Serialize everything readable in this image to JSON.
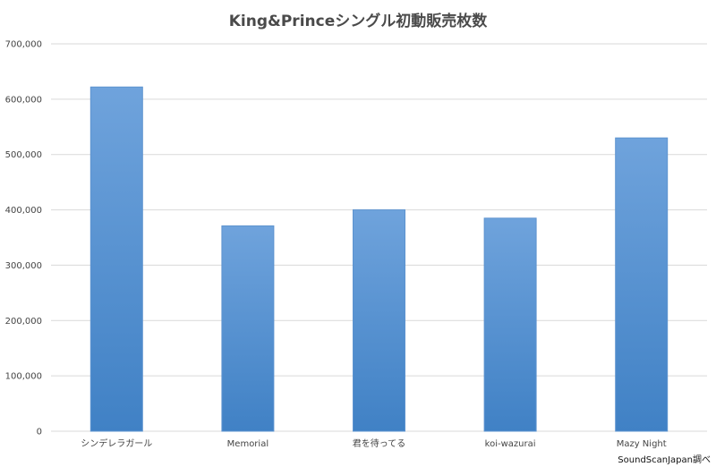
{
  "chart_data": {
    "type": "bar",
    "title": "King&Princeシングル初動販売枚数",
    "categories": [
      "シンデレラガール",
      "Memorial",
      "君を待ってる",
      "koi-wazurai",
      "Mazy Night"
    ],
    "values": [
      622000,
      371000,
      400000,
      385000,
      530000
    ],
    "ylim": [
      0,
      700000
    ],
    "yticks": [
      "0",
      "100,000",
      "200,000",
      "300,000",
      "400,000",
      "500,000",
      "600,000",
      "700,000"
    ],
    "xlabel": "",
    "ylabel": "",
    "grid": true,
    "legend": "none",
    "colors": {
      "bar_top": "#6fa3dc",
      "bar_bottom": "#4081c5",
      "bar_stroke": "#5d93cf",
      "grid": "#d9d9d9"
    }
  },
  "source_note": "SoundScanJapan調べ"
}
